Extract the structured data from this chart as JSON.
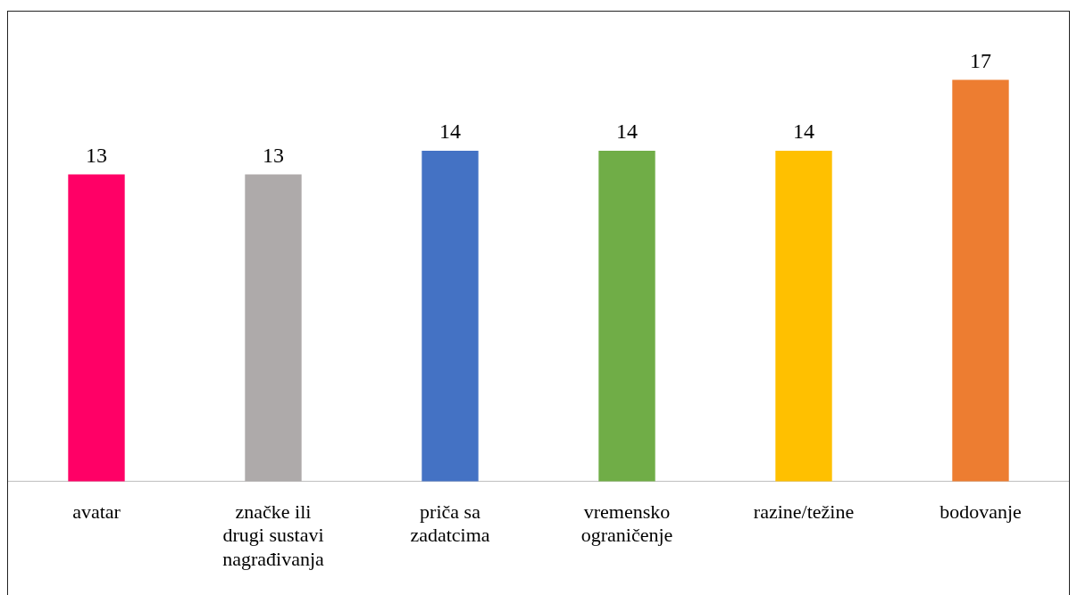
{
  "chart_data": {
    "type": "bar",
    "categories": [
      "avatar",
      "značke ili drugi sustavi nagrađivanja",
      "priča sa zadatcima",
      "vremensko ograničenje",
      "razine/težine",
      "bodovanje"
    ],
    "values": [
      13,
      13,
      14,
      14,
      14,
      17
    ],
    "colors": [
      "#ff0066",
      "#aeaaaa",
      "#4472c4",
      "#70ad47",
      "#ffc000",
      "#ed7d31"
    ],
    "data_labels": true,
    "grid": false,
    "legend": false
  }
}
